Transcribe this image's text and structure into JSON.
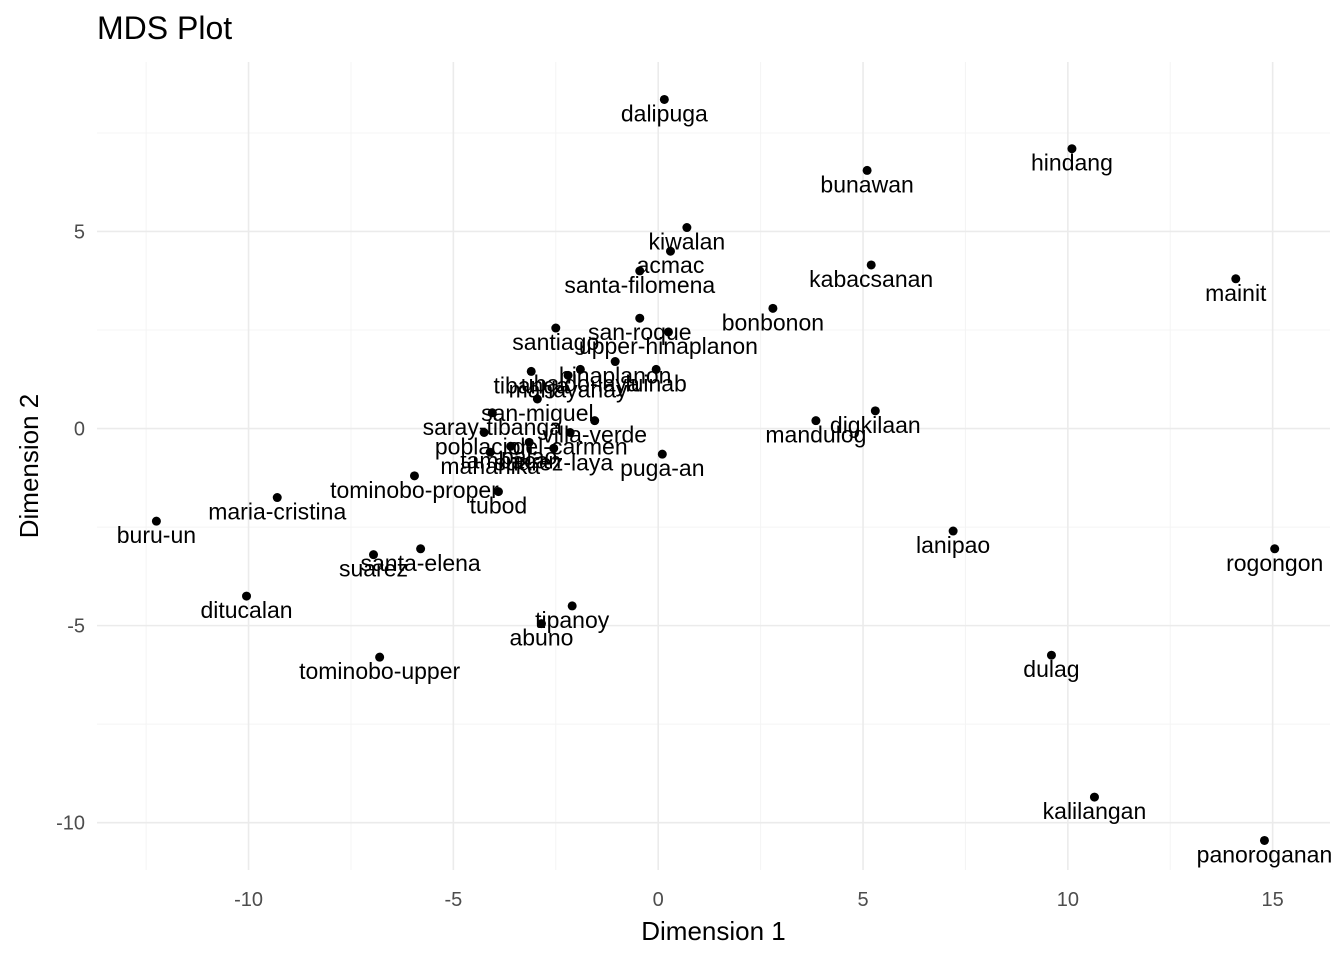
{
  "chart_data": {
    "type": "scatter",
    "title": "MDS Plot",
    "xlabel": "Dimension 1",
    "ylabel": "Dimension 2",
    "xlim": [
      -13.7,
      16.4
    ],
    "ylim": [
      -11.2,
      9.3
    ],
    "x_ticks": [
      -10,
      -5,
      0,
      5,
      10,
      15
    ],
    "x_tick_labels": [
      "-10",
      "-5",
      "0",
      "5",
      "10",
      "15"
    ],
    "y_ticks": [
      -10,
      -5,
      0,
      5
    ],
    "y_tick_labels": [
      "-10",
      "-5",
      "0",
      "5"
    ],
    "grid": true,
    "legend": "none",
    "colors": {
      "point": "#000000",
      "grid_major": "#ebebeb",
      "grid_minor": "#f4f4f4",
      "axis_text": "#4d4d4d"
    },
    "points": [
      {
        "label": "dalipuga",
        "x": 0.15,
        "y": 8.35
      },
      {
        "label": "hindang",
        "x": 10.1,
        "y": 7.1
      },
      {
        "label": "bunawan",
        "x": 5.1,
        "y": 6.55
      },
      {
        "label": "kiwalan",
        "x": 0.7,
        "y": 5.1
      },
      {
        "label": "acmac",
        "x": 0.3,
        "y": 4.5
      },
      {
        "label": "santa-filomena",
        "x": -0.45,
        "y": 4.0
      },
      {
        "label": "kabacsanan",
        "x": 5.2,
        "y": 4.15
      },
      {
        "label": "mainit",
        "x": 14.1,
        "y": 3.8
      },
      {
        "label": "bonbonon",
        "x": 2.8,
        "y": 3.05
      },
      {
        "label": "santiago",
        "x": -2.5,
        "y": 2.55
      },
      {
        "label": "san-roque",
        "x": -0.45,
        "y": 2.8
      },
      {
        "label": "upper-hinaplanon",
        "x": 0.25,
        "y": 2.45
      },
      {
        "label": "hinaplanon",
        "x": -1.05,
        "y": 1.7
      },
      {
        "label": "tibanga",
        "x": -3.1,
        "y": 1.45
      },
      {
        "label": "ubaldo-laya",
        "x": -1.9,
        "y": 1.5
      },
      {
        "label": "luinab",
        "x": -0.05,
        "y": 1.5
      },
      {
        "label": "mahayahay",
        "x": -2.2,
        "y": 1.35
      },
      {
        "label": "san-miguel",
        "x": -2.95,
        "y": 0.75
      },
      {
        "label": "saray-tibanga",
        "x": -4.05,
        "y": 0.4
      },
      {
        "label": "villa-verde",
        "x": -1.55,
        "y": 0.2
      },
      {
        "label": "poblacion",
        "x": -4.25,
        "y": -0.1
      },
      {
        "label": "del-carmen",
        "x": -2.15,
        "y": -0.1
      },
      {
        "label": "digkilaan",
        "x": 5.3,
        "y": 0.45
      },
      {
        "label": "mandulog",
        "x": 3.85,
        "y": 0.2
      },
      {
        "label": "tambacan",
        "x": -3.6,
        "y": -0.45
      },
      {
        "label": "palao",
        "x": -3.15,
        "y": -0.35
      },
      {
        "label": "suarez-laya",
        "x": -2.55,
        "y": -0.5
      },
      {
        "label": "maharlika",
        "x": -4.1,
        "y": -0.6
      },
      {
        "label": "puga-an",
        "x": 0.1,
        "y": -0.65
      },
      {
        "label": "tominobo-proper",
        "x": -5.95,
        "y": -1.2
      },
      {
        "label": "tubod",
        "x": -3.9,
        "y": -1.6
      },
      {
        "label": "maria-cristina",
        "x": -9.3,
        "y": -1.75
      },
      {
        "label": "buru-un",
        "x": -12.25,
        "y": -2.35
      },
      {
        "label": "lanipao",
        "x": 7.2,
        "y": -2.6
      },
      {
        "label": "rogongon",
        "x": 15.05,
        "y": -3.05
      },
      {
        "label": "santa-elena",
        "x": -5.8,
        "y": -3.05
      },
      {
        "label": "suarez",
        "x": -6.95,
        "y": -3.2
      },
      {
        "label": "ditucalan",
        "x": -10.05,
        "y": -4.25
      },
      {
        "label": "tipanoy",
        "x": -2.1,
        "y": -4.5
      },
      {
        "label": "abuno",
        "x": -2.85,
        "y": -4.95
      },
      {
        "label": "tominobo-upper",
        "x": -6.8,
        "y": -5.8
      },
      {
        "label": "dulag",
        "x": 9.6,
        "y": -5.75
      },
      {
        "label": "kalilangan",
        "x": 10.65,
        "y": -9.35
      },
      {
        "label": "panoroganan",
        "x": 14.8,
        "y": -10.45
      }
    ]
  }
}
